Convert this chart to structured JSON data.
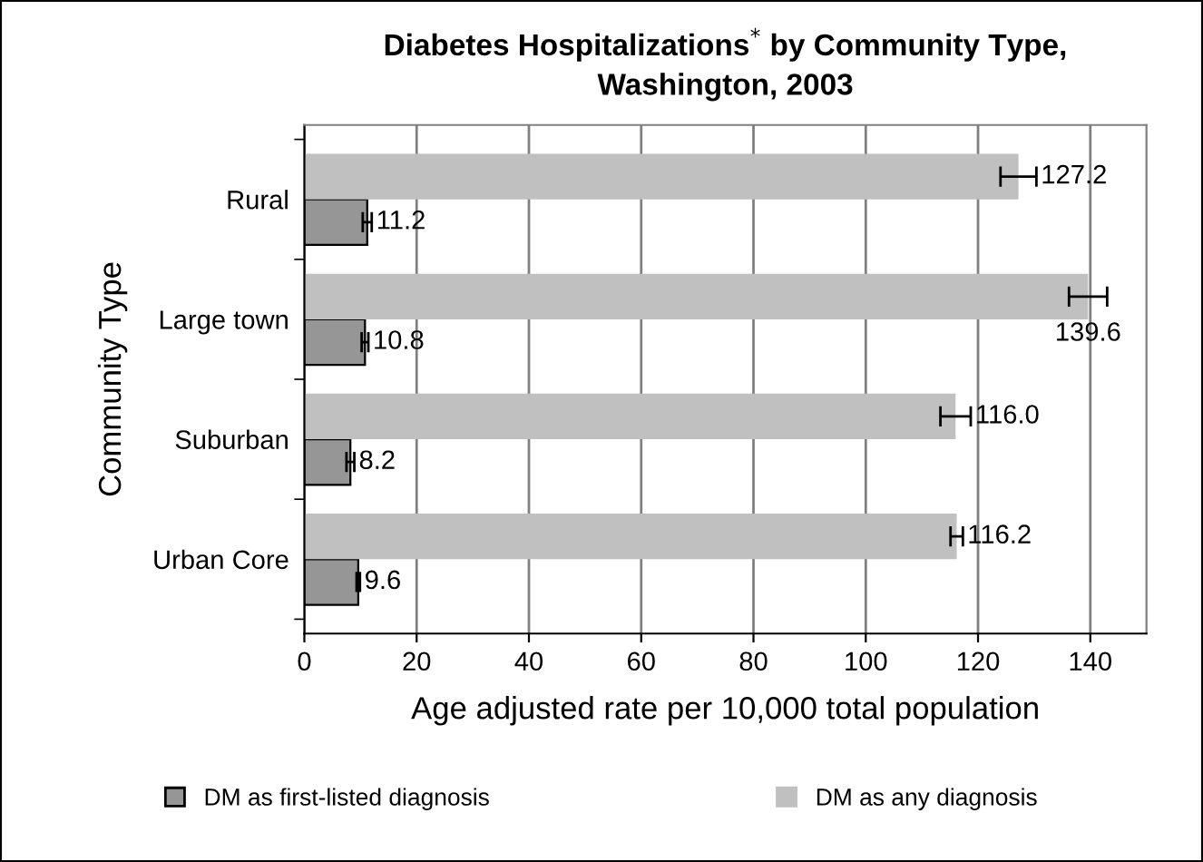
{
  "chart_data": {
    "type": "bar",
    "orientation": "horizontal",
    "title": "Diabetes Hospitalizations$^{*}$ by Community Type,\nWashington, 2003",
    "xlabel": "Age adjusted rate per 10,000 total population",
    "ylabel": "Community Type",
    "categories": [
      "Rural",
      "Large town",
      "Suburban",
      "Urban Core"
    ],
    "series": [
      {
        "name": "DM as first-listed diagnosis",
        "color": "#969696",
        "values": [
          11.2,
          10.8,
          8.2,
          9.6
        ],
        "errors": [
          0.8,
          0.6,
          0.7,
          0.3
        ],
        "value_labels": [
          "11.2",
          "10.8",
          "8.2",
          "9.6"
        ]
      },
      {
        "name": "DM as any diagnosis",
        "color": "#c0c0c0",
        "values": [
          127.2,
          139.6,
          116.0,
          116.2
        ],
        "errors": [
          3.2,
          3.4,
          2.7,
          1.1
        ],
        "value_labels": [
          "127.2",
          "139.6",
          "116.0",
          "116.2"
        ]
      }
    ],
    "xlim": [
      0,
      150
    ],
    "xticks": [
      0,
      20,
      40,
      60,
      80,
      100,
      120,
      140
    ],
    "grid": "x",
    "legend": "bottom"
  }
}
